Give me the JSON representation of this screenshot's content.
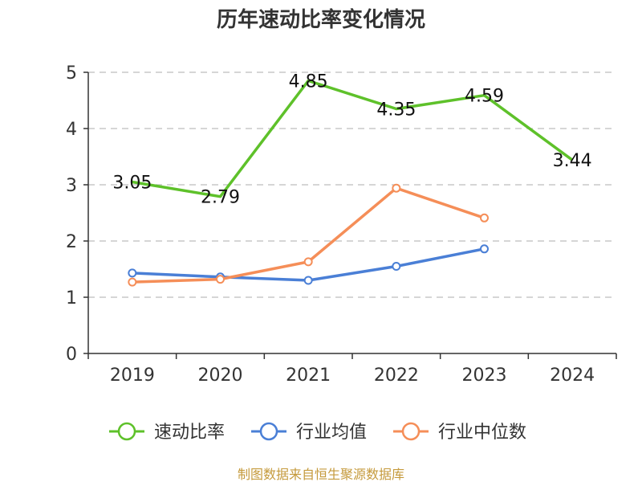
{
  "chart_data": {
    "type": "line",
    "title": "历年速动比率变化情况",
    "categories": [
      "2019",
      "2020",
      "2021",
      "2022",
      "2023",
      "2024"
    ],
    "ylim": [
      0,
      5
    ],
    "yticks": [
      0,
      1,
      2,
      3,
      4,
      5
    ],
    "grid": true,
    "legend_position": "bottom",
    "series": [
      {
        "name": "速动比率",
        "color": "#5ec12a",
        "values": [
          3.05,
          2.79,
          4.85,
          4.35,
          4.59,
          3.44
        ],
        "show_labels": true,
        "markers": false
      },
      {
        "name": "行业均值",
        "color": "#4a7fd6",
        "values": [
          1.43,
          1.36,
          1.3,
          1.55,
          1.86,
          null
        ],
        "show_labels": false,
        "markers": true
      },
      {
        "name": "行业中位数",
        "color": "#f58e58",
        "values": [
          1.27,
          1.32,
          1.63,
          2.94,
          2.41,
          null
        ],
        "show_labels": false,
        "markers": true
      }
    ],
    "source": "制图数据来自恒生聚源数据库"
  }
}
